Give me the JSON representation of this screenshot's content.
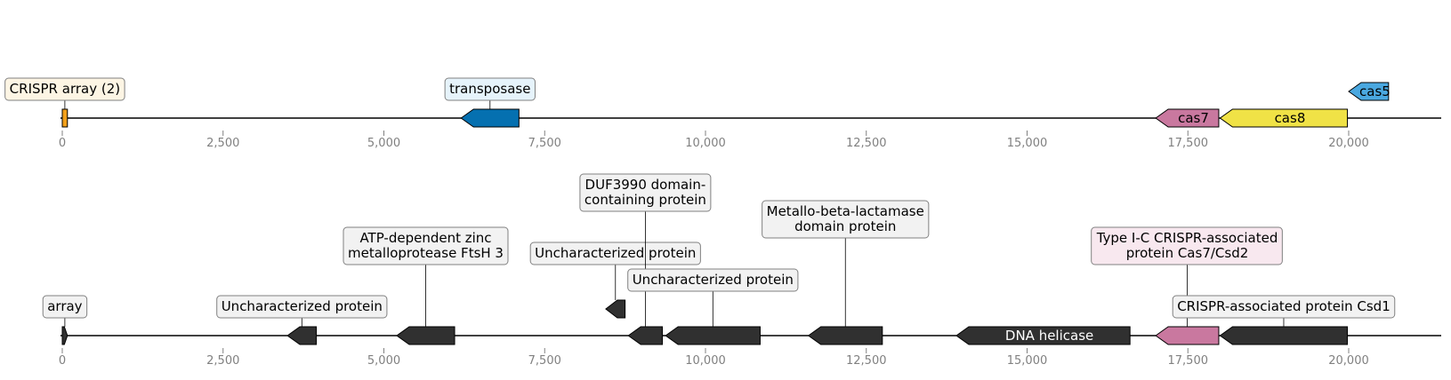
{
  "tracks": [
    {
      "id": "track-1",
      "ticks": [
        "0",
        "2,500",
        "5,000",
        "7,500",
        "10,000",
        "12,500",
        "15,000",
        "17,500",
        "20,000"
      ],
      "features": [
        {
          "name": "crispr-array",
          "start": 0,
          "end": 80,
          "strand": 0,
          "color": "#f2a01b",
          "label": "CRISPR array (2)",
          "label_box": "#fdf5e4",
          "label_row": 1
        },
        {
          "name": "transposase",
          "start": 6200,
          "end": 7100,
          "strand": -1,
          "color": "#0570b0",
          "label": "transposase",
          "label_box": "#e6f3fb",
          "label_row": 1
        },
        {
          "name": "cas7",
          "start": 17000,
          "end": 17980,
          "strand": -1,
          "color": "#c9789f",
          "label": "cas7",
          "inside": true,
          "text_color": "#000000"
        },
        {
          "name": "cas8",
          "start": 18000,
          "end": 19980,
          "strand": -1,
          "color": "#f0e246",
          "label": "cas8",
          "inside": true,
          "text_color": "#000000"
        },
        {
          "name": "cas5",
          "start": 20000,
          "end": 20620,
          "strand": -1,
          "color": "#4aa8e0",
          "label": "cas5",
          "inside": true,
          "text_color": "#000000",
          "raised": true
        }
      ]
    },
    {
      "id": "track-2",
      "ticks": [
        "0",
        "2,500",
        "5,000",
        "7,500",
        "10,000",
        "12,500",
        "15,000",
        "17,500",
        "20,000"
      ],
      "features": [
        {
          "name": "array",
          "start": 0,
          "end": 80,
          "strand": 1,
          "color": "#303030",
          "label": "array",
          "label_box": "#f2f2f2",
          "label_row": 1
        },
        {
          "name": "uncharacterized-protein-1",
          "start": 3500,
          "end": 3950,
          "strand": -1,
          "color": "#303030",
          "label": "Uncharacterized protein",
          "label_box": "#f2f2f2",
          "label_row": 1
        },
        {
          "name": "ftsh",
          "start": 5200,
          "end": 6100,
          "strand": -1,
          "color": "#303030",
          "label": "ATP-dependent zinc\nmetalloprotease FtsH 3",
          "label_box": "#f2f2f2",
          "label_row": 3
        },
        {
          "name": "uncharacterized-protein-2",
          "start": 8450,
          "end": 8750,
          "strand": -1,
          "color": "#303030",
          "label": "Uncharacterized protein",
          "label_box": "#f2f2f2",
          "label_row": 3,
          "raised": true
        },
        {
          "name": "duf3990",
          "start": 8800,
          "end": 9330,
          "strand": -1,
          "color": "#303030",
          "label": "DUF3990 domain-\ncontaining protein",
          "label_box": "#f2f2f2",
          "label_row": 5
        },
        {
          "name": "uncharacterized-protein-3",
          "start": 9380,
          "end": 10850,
          "strand": -1,
          "color": "#303030",
          "label": "Uncharacterized protein",
          "label_box": "#f2f2f2",
          "label_row": 2
        },
        {
          "name": "metallo-beta-lactamase",
          "start": 11600,
          "end": 12750,
          "strand": -1,
          "color": "#303030",
          "label": "Metallo-beta-lactamase\ndomain protein",
          "label_box": "#f2f2f2",
          "label_row": 4
        },
        {
          "name": "dna-helicase",
          "start": 13900,
          "end": 16600,
          "strand": -1,
          "color": "#303030",
          "label": "DNA helicase",
          "inside": true,
          "text_color": "#ffffff"
        },
        {
          "name": "cas7-csd2",
          "start": 17000,
          "end": 17980,
          "strand": -1,
          "color": "#c9789f",
          "label": "Type I-C CRISPR-associated\nprotein Cas7/Csd2",
          "label_box": "#f8e8ef",
          "label_row": 3
        },
        {
          "name": "csd1",
          "start": 18000,
          "end": 19980,
          "strand": -1,
          "color": "#303030",
          "label": "CRISPR-associated protein Csd1",
          "label_box": "#f2f2f2",
          "label_row": 1
        }
      ]
    }
  ]
}
